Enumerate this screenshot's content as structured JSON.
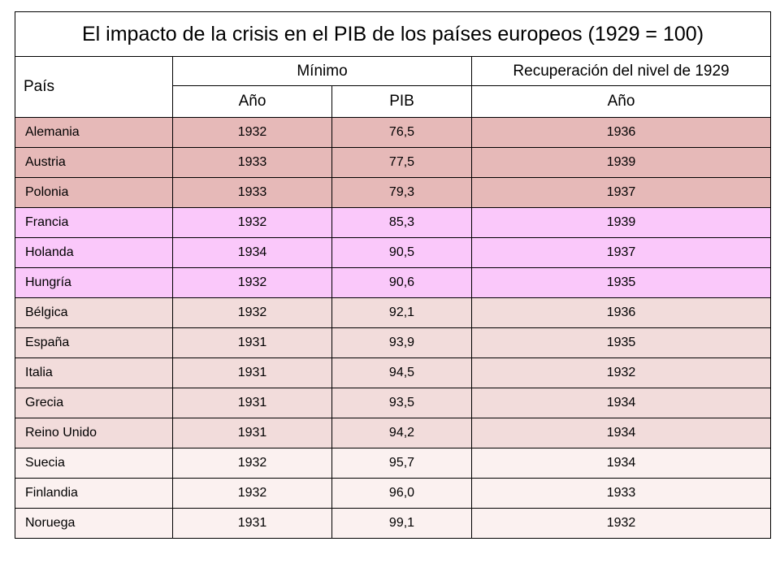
{
  "chart_data": {
    "type": "table",
    "title": "El impacto de la crisis en el PIB de los países europeos (1929 = 100)",
    "headers": {
      "country": "País",
      "minimum_group": "Mínimo",
      "recovery_group": "Recuperación del nivel de 1929",
      "min_year": "Año",
      "min_gdp": "PIB",
      "recovery_year": "Año"
    },
    "group_colors": {
      "severe": "#e6b9b8",
      "moderate": "#fac8fa",
      "mild": "#f2dcdb",
      "light": "#fbf1f0"
    },
    "rows": [
      {
        "country": "Alemania",
        "min_year": "1932",
        "gdp": "76,5",
        "recovery_year": "1936",
        "group": "severe"
      },
      {
        "country": "Austria",
        "min_year": "1933",
        "gdp": "77,5",
        "recovery_year": "1939",
        "group": "severe"
      },
      {
        "country": "Polonia",
        "min_year": "1933",
        "gdp": "79,3",
        "recovery_year": "1937",
        "group": "severe"
      },
      {
        "country": "Francia",
        "min_year": "1932",
        "gdp": "85,3",
        "recovery_year": "1939",
        "group": "moderate"
      },
      {
        "country": "Holanda",
        "min_year": "1934",
        "gdp": "90,5",
        "recovery_year": "1937",
        "group": "moderate"
      },
      {
        "country": "Hungría",
        "min_year": "1932",
        "gdp": "90,6",
        "recovery_year": "1935",
        "group": "moderate"
      },
      {
        "country": "Bélgica",
        "min_year": "1932",
        "gdp": "92,1",
        "recovery_year": "1936",
        "group": "mild"
      },
      {
        "country": "España",
        "min_year": "1931",
        "gdp": "93,9",
        "recovery_year": "1935",
        "group": "mild"
      },
      {
        "country": "Italia",
        "min_year": "1931",
        "gdp": "94,5",
        "recovery_year": "1932",
        "group": "mild"
      },
      {
        "country": "Grecia",
        "min_year": "1931",
        "gdp": "93,5",
        "recovery_year": "1934",
        "group": "mild"
      },
      {
        "country": "Reino Unido",
        "min_year": "1931",
        "gdp": "94,2",
        "recovery_year": "1934",
        "group": "mild"
      },
      {
        "country": "Suecia",
        "min_year": "1932",
        "gdp": "95,7",
        "recovery_year": "1934",
        "group": "light"
      },
      {
        "country": "Finlandia",
        "min_year": "1932",
        "gdp": "96,0",
        "recovery_year": "1933",
        "group": "light"
      },
      {
        "country": "Noruega",
        "min_year": "1931",
        "gdp": "99,1",
        "recovery_year": "1932",
        "group": "light"
      }
    ]
  }
}
